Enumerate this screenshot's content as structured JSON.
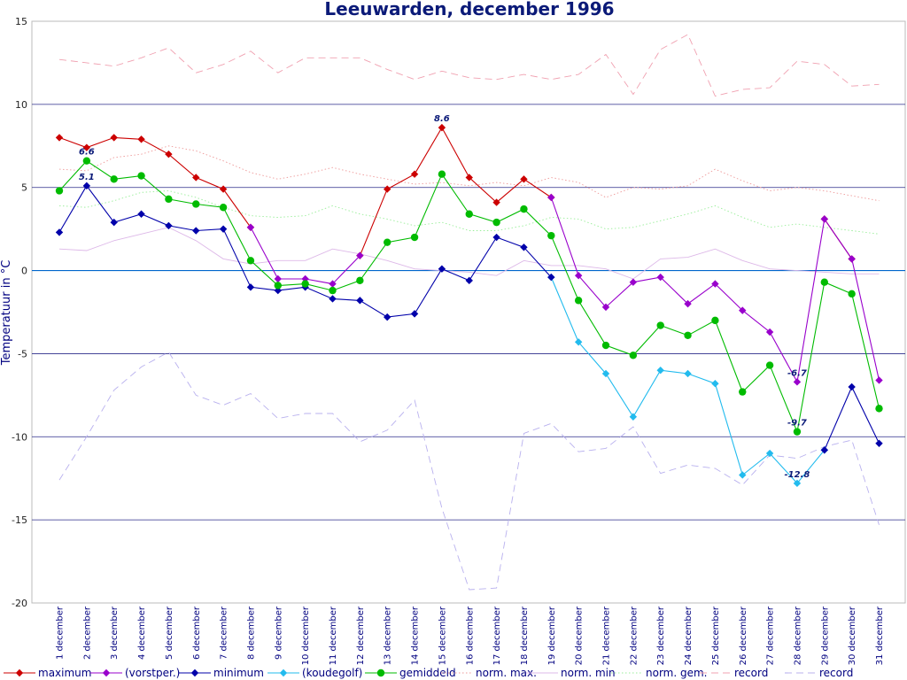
{
  "chart_data": {
    "type": "line",
    "title": "Leeuwarden, december 1996",
    "xlabel": "",
    "ylabel": "Temperatuur in °C",
    "ylim": [
      -20,
      15
    ],
    "yticks": [
      -20,
      -15,
      -10,
      -5,
      0,
      5,
      10,
      15
    ],
    "grid": true,
    "legend_position": "bottom",
    "categories": [
      "1 december",
      "2 december",
      "3 december",
      "4 december",
      "5 december",
      "6 december",
      "7 december",
      "8 december",
      "9 december",
      "10 december",
      "11 december",
      "12 december",
      "13 december",
      "14 december",
      "15 december",
      "16 december",
      "17 december",
      "18 december",
      "19 december",
      "20 december",
      "21 december",
      "22 december",
      "23 december",
      "24 december",
      "25 december",
      "26 december",
      "27 december",
      "28 december",
      "29 december",
      "30 december",
      "31 december"
    ],
    "series": [
      {
        "name": "maximum",
        "color": "#cc0000",
        "marker": "diamond",
        "style": "solid",
        "values": [
          8.0,
          7.4,
          8.0,
          7.9,
          7.0,
          5.6,
          4.9,
          2.6,
          null,
          null,
          null,
          0.9,
          4.9,
          5.8,
          8.6,
          5.6,
          4.1,
          5.5,
          4.4,
          null,
          null,
          null,
          null,
          null,
          null,
          null,
          null,
          null,
          3.1,
          0.7,
          null
        ]
      },
      {
        "name": "(vorstper.)",
        "color": "#9900cc",
        "marker": "diamond",
        "style": "solid",
        "values": [
          null,
          null,
          null,
          null,
          null,
          null,
          null,
          2.6,
          -0.5,
          -0.5,
          -0.8,
          0.9,
          null,
          null,
          null,
          null,
          null,
          null,
          4.4,
          -0.3,
          -2.2,
          -0.7,
          -0.4,
          -2.0,
          -0.8,
          -2.4,
          -3.7,
          -6.7,
          3.1,
          0.7,
          -6.6
        ]
      },
      {
        "name": "minimum",
        "color": "#0000aa",
        "marker": "diamond",
        "style": "solid",
        "values": [
          2.3,
          5.1,
          2.9,
          3.4,
          2.7,
          2.4,
          2.5,
          -1.0,
          -1.2,
          -1.0,
          -1.7,
          -1.8,
          -2.8,
          -2.6,
          0.1,
          -0.6,
          2.0,
          1.4,
          -0.4,
          null,
          null,
          null,
          null,
          null,
          null,
          null,
          null,
          null,
          -10.8,
          -7.0,
          -10.4
        ]
      },
      {
        "name": "(koudegolf)",
        "color": "#22bbee",
        "marker": "diamond",
        "style": "solid",
        "values": [
          null,
          null,
          null,
          null,
          null,
          null,
          null,
          null,
          null,
          null,
          null,
          null,
          null,
          null,
          null,
          null,
          null,
          null,
          -0.4,
          -4.3,
          -6.2,
          -8.8,
          -6.0,
          -6.2,
          -6.8,
          -12.3,
          -11.0,
          -12.8,
          -10.8,
          null,
          null
        ]
      },
      {
        "name": "gemiddeld",
        "color": "#00bb00",
        "marker": "circle",
        "style": "solid",
        "values": [
          4.8,
          6.6,
          5.5,
          5.7,
          4.3,
          4.0,
          3.8,
          0.6,
          -0.9,
          -0.8,
          -1.2,
          -0.6,
          1.7,
          2.0,
          5.8,
          3.4,
          2.9,
          3.7,
          2.1,
          -1.8,
          -4.5,
          -5.1,
          -3.3,
          -3.9,
          -3.0,
          -7.3,
          -5.7,
          -9.7,
          -0.7,
          -1.4,
          -8.3
        ]
      },
      {
        "name": "norm. max.",
        "color": "#ee9999",
        "marker": "none",
        "style": "dotted",
        "values": [
          6.1,
          6.0,
          6.8,
          7.0,
          7.5,
          7.2,
          6.6,
          5.9,
          5.5,
          5.8,
          6.2,
          5.8,
          5.5,
          5.2,
          5.3,
          5.1,
          5.3,
          5.1,
          5.6,
          5.3,
          4.4,
          5.0,
          4.9,
          5.1,
          6.1,
          5.4,
          4.8,
          5.0,
          4.8,
          4.5,
          4.2
        ]
      },
      {
        "name": "norm. min",
        "color": "#ddb8e8",
        "marker": "none",
        "style": "solid",
        "values": [
          1.3,
          1.2,
          1.8,
          2.2,
          2.6,
          1.8,
          0.7,
          0.4,
          0.6,
          0.6,
          1.3,
          1.0,
          0.6,
          0.1,
          0.0,
          -0.1,
          -0.3,
          0.6,
          0.3,
          0.3,
          0.1,
          -0.5,
          0.7,
          0.8,
          1.3,
          0.6,
          0.1,
          0.0,
          -0.1,
          -0.2,
          -0.2
        ]
      },
      {
        "name": "norm. gem.",
        "color": "#99ee99",
        "marker": "none",
        "style": "dotted",
        "values": [
          3.9,
          3.8,
          4.2,
          4.7,
          4.8,
          4.4,
          3.8,
          3.3,
          3.2,
          3.3,
          3.9,
          3.4,
          3.1,
          2.7,
          2.9,
          2.4,
          2.4,
          2.7,
          3.2,
          3.1,
          2.5,
          2.6,
          3.0,
          3.4,
          3.9,
          3.2,
          2.6,
          2.8,
          2.6,
          2.4,
          2.2
        ]
      },
      {
        "name": "record",
        "color": "#f0a0b0",
        "marker": "none",
        "style": "dashed",
        "values": [
          12.7,
          12.5,
          12.3,
          12.8,
          13.4,
          11.9,
          12.4,
          13.2,
          11.9,
          12.8,
          12.8,
          12.8,
          12.1,
          11.5,
          12.0,
          11.6,
          11.5,
          11.8,
          11.5,
          11.8,
          13.0,
          10.6,
          13.3,
          14.2,
          10.5,
          10.9,
          11.0,
          12.6,
          12.4,
          11.1,
          11.2
        ]
      },
      {
        "name": "record",
        "color": "#b8b0ee",
        "marker": "none",
        "style": "dashed",
        "values": [
          -12.6,
          -10.0,
          -7.2,
          -5.8,
          -4.9,
          -7.5,
          -8.1,
          -7.4,
          -8.9,
          -8.6,
          -8.6,
          -10.3,
          -9.6,
          -7.8,
          -14.3,
          -19.2,
          -19.1,
          -9.8,
          -9.2,
          -10.9,
          -10.7,
          -9.4,
          -12.2,
          -11.7,
          -11.9,
          -12.9,
          -11.1,
          -11.3,
          -10.6,
          -10.2,
          -15.3
        ]
      }
    ],
    "annotations": [
      {
        "text": "6.6",
        "x": "2 december",
        "y": 6.6
      },
      {
        "text": "5.1",
        "x": "2 december",
        "y": 5.1
      },
      {
        "text": "8.6",
        "x": "15 december",
        "y": 8.6
      },
      {
        "text": "-6.7",
        "x": "28 december",
        "y": -6.7
      },
      {
        "text": "-9.7",
        "x": "28 december",
        "y": -9.7
      },
      {
        "text": "-12.8",
        "x": "28 december",
        "y": -12.8
      }
    ]
  }
}
